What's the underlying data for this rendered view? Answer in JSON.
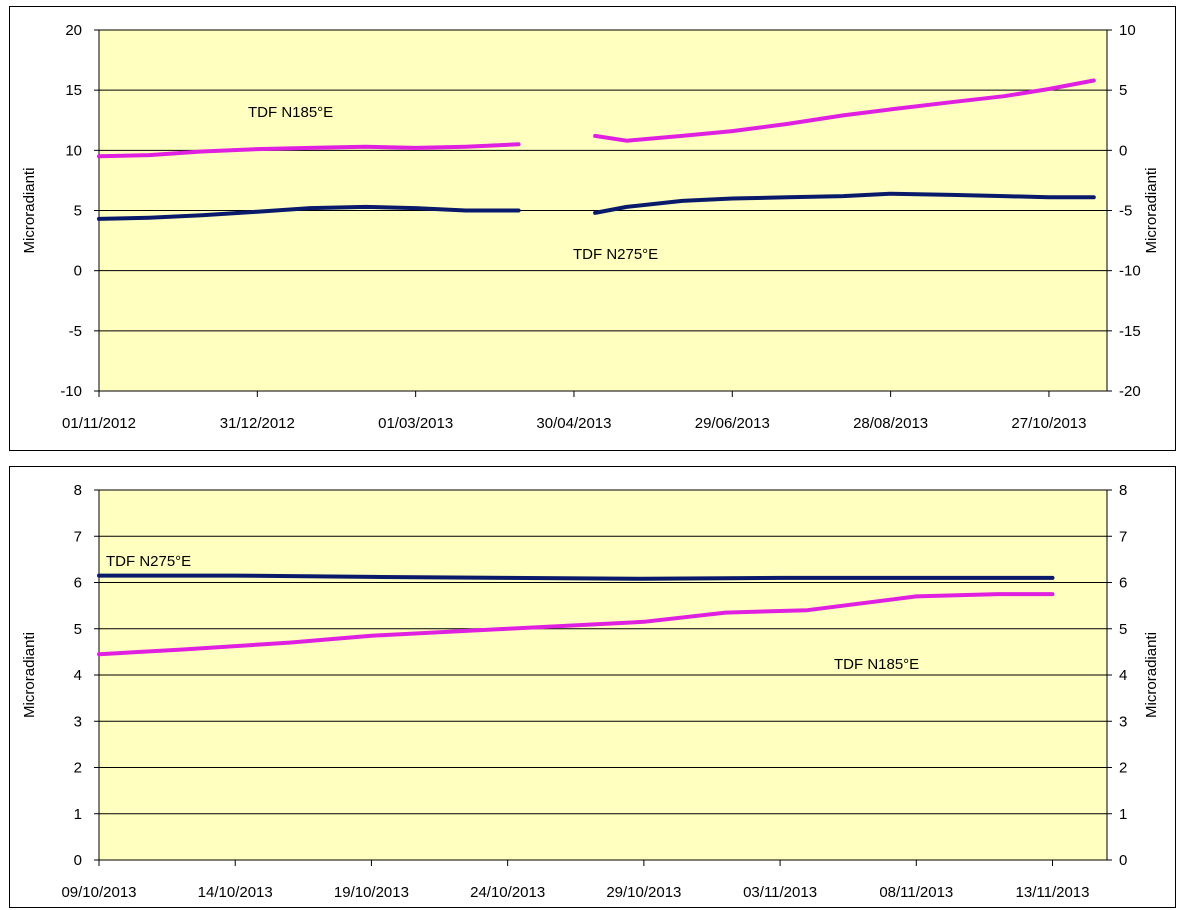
{
  "colors": {
    "plot_bg": "#ffffc0",
    "tdf_n185": "#e020e0",
    "tdf_n275": "#0a1a6a"
  },
  "chart_data": [
    {
      "type": "line",
      "ylabel": "Microradianti",
      "y2label": "Microradianti",
      "ylim": [
        -10,
        20
      ],
      "y2lim": [
        -20,
        10
      ],
      "y_ticks": [
        "20",
        "15",
        "10",
        "5",
        "0",
        "-5",
        "-10"
      ],
      "y2_ticks": [
        "10",
        "5",
        "0",
        "-5",
        "-10",
        "-15",
        "-20"
      ],
      "x_ticks": [
        "01/11/2012",
        "31/12/2012",
        "01/03/2013",
        "30/04/2013",
        "29/06/2013",
        "28/08/2013",
        "27/10/2013"
      ],
      "xlim": [
        "2012-11-01",
        "2013-11-18"
      ],
      "grid": true,
      "annotations": [
        {
          "text": "TDF N185°E",
          "series": "tdf_n185"
        },
        {
          "text": "TDF N275°E",
          "series": "tdf_n275"
        }
      ],
      "series": [
        {
          "key": "tdf_n185",
          "axis": "left",
          "x": [
            "2012-11-01",
            "2012-11-20",
            "2012-12-10",
            "2012-12-31",
            "2013-01-20",
            "2013-02-10",
            "2013-03-01",
            "2013-03-20",
            "2013-04-09",
            null,
            "2013-05-08",
            "2013-05-20",
            "2013-06-10",
            "2013-06-29",
            "2013-07-20",
            "2013-08-10",
            "2013-08-28",
            "2013-09-20",
            "2013-10-10",
            "2013-10-27",
            "2013-11-13"
          ],
          "values": [
            9.5,
            9.6,
            9.9,
            10.1,
            10.2,
            10.3,
            10.2,
            10.3,
            10.5,
            null,
            11.2,
            10.8,
            11.2,
            11.6,
            12.2,
            12.9,
            13.4,
            14.0,
            14.5,
            15.1,
            15.8
          ]
        },
        {
          "key": "tdf_n275",
          "axis": "left",
          "x": [
            "2012-11-01",
            "2012-11-20",
            "2012-12-10",
            "2012-12-31",
            "2013-01-20",
            "2013-02-10",
            "2013-03-01",
            "2013-03-20",
            "2013-04-09",
            null,
            "2013-05-08",
            "2013-05-20",
            "2013-06-10",
            "2013-06-29",
            "2013-07-20",
            "2013-08-10",
            "2013-08-28",
            "2013-09-20",
            "2013-10-10",
            "2013-10-27",
            "2013-11-13"
          ],
          "values": [
            4.3,
            4.4,
            4.6,
            4.9,
            5.2,
            5.3,
            5.2,
            5.0,
            5.0,
            null,
            4.8,
            5.3,
            5.8,
            6.0,
            6.1,
            6.2,
            6.4,
            6.3,
            6.2,
            6.1,
            6.1
          ]
        }
      ]
    },
    {
      "type": "line",
      "ylabel": "Microradianti",
      "y2label": "Microradianti",
      "ylim": [
        0,
        8
      ],
      "y2lim": [
        0,
        8
      ],
      "y_ticks": [
        "8",
        "7",
        "6",
        "5",
        "4",
        "3",
        "2",
        "1",
        "0"
      ],
      "y2_ticks": [
        "8",
        "7",
        "6",
        "5",
        "4",
        "3",
        "2",
        "1",
        "0"
      ],
      "x_ticks": [
        "09/10/2013",
        "14/10/2013",
        "19/10/2013",
        "24/10/2013",
        "29/10/2013",
        "03/11/2013",
        "08/11/2013",
        "13/11/2013"
      ],
      "xlim": [
        "2013-10-09",
        "2013-11-15"
      ],
      "grid": true,
      "annotations": [
        {
          "text": "TDF N275°E",
          "series": "tdf_n275"
        },
        {
          "text": "TDF N185°E",
          "series": "tdf_n185"
        }
      ],
      "series": [
        {
          "key": "tdf_n275",
          "axis": "left",
          "x": [
            "2013-10-09",
            "2013-10-14",
            "2013-10-19",
            "2013-10-24",
            "2013-10-29",
            "2013-11-03",
            "2013-11-08",
            "2013-11-13"
          ],
          "values": [
            6.15,
            6.15,
            6.12,
            6.1,
            6.08,
            6.1,
            6.1,
            6.1
          ]
        },
        {
          "key": "tdf_n185",
          "axis": "left",
          "x": [
            "2013-10-09",
            "2013-10-12",
            "2013-10-16",
            "2013-10-19",
            "2013-10-24",
            "2013-10-29",
            "2013-11-01",
            "2013-11-04",
            "2013-11-08",
            "2013-11-11",
            "2013-11-13"
          ],
          "values": [
            4.45,
            4.55,
            4.7,
            4.85,
            5.0,
            5.15,
            5.35,
            5.4,
            5.7,
            5.75,
            5.75
          ]
        }
      ]
    }
  ]
}
